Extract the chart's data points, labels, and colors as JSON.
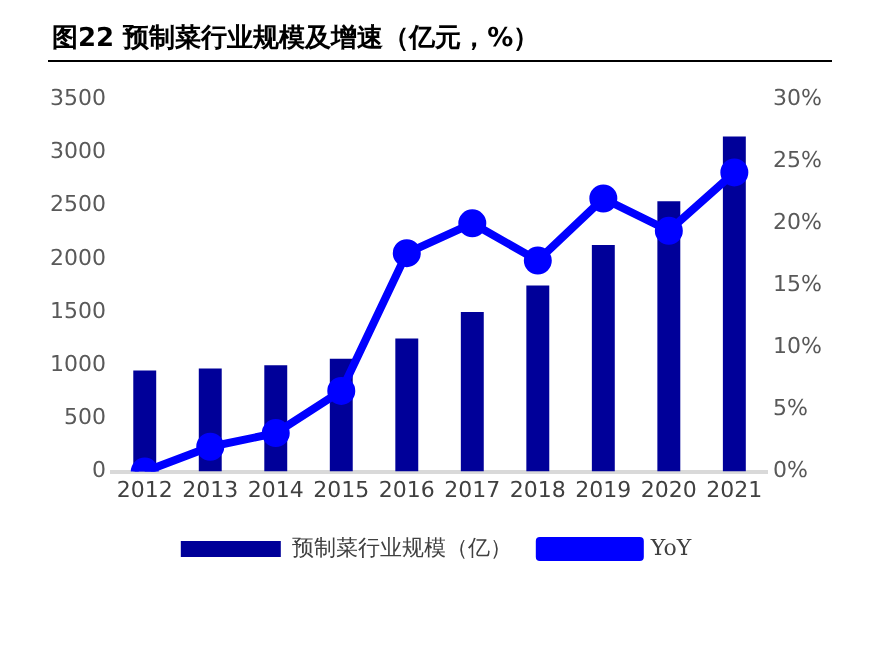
{
  "chart_data": {
    "type": "bar",
    "title": "图22 预制菜行业规模及增速（亿元，%）",
    "categories": [
      "2012",
      "2013",
      "2014",
      "2015",
      "2016",
      "2017",
      "2018",
      "2019",
      "2020",
      "2021"
    ],
    "series": [
      {
        "name": "预制菜行业规模（亿）",
        "color": "#000099",
        "values": [
          950,
          970,
          1000,
          1060,
          1250,
          1500,
          1750,
          2130,
          2540,
          3150
        ]
      },
      {
        "name": "YoY",
        "type": "line",
        "axis": "y2",
        "color": "#0000ff",
        "values": [
          0,
          2.0,
          3.1,
          6.5,
          17.6,
          20.0,
          17.0,
          22.0,
          19.4,
          24.1
        ]
      }
    ],
    "ylim": [
      0,
      3500
    ],
    "yticks": [
      0,
      500,
      1000,
      1500,
      2000,
      2500,
      3000,
      3500
    ],
    "y2lim": [
      0,
      30
    ],
    "y2ticks": [
      {
        "value": 0,
        "label": "0%"
      },
      {
        "value": 5,
        "label": "5%"
      },
      {
        "value": 10,
        "label": "10%"
      },
      {
        "value": 15,
        "label": "15%"
      },
      {
        "value": 20,
        "label": "20%"
      },
      {
        "value": 25,
        "label": "25%"
      },
      {
        "value": 30,
        "label": "30%"
      }
    ],
    "grid": false,
    "legend": "bottom",
    "marker": "circle",
    "line_style": "solid"
  }
}
